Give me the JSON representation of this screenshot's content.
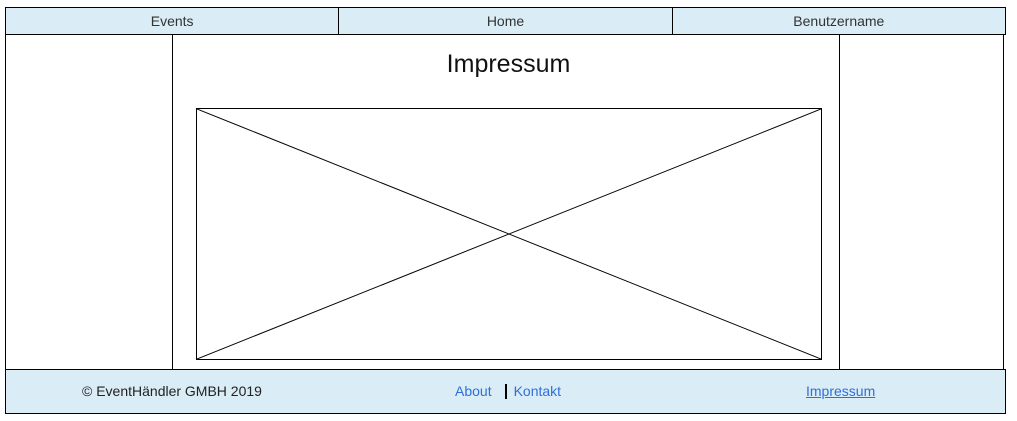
{
  "nav": {
    "items": [
      {
        "label": "Events"
      },
      {
        "label": "Home"
      },
      {
        "label": "Benutzername"
      }
    ]
  },
  "main": {
    "title": "Impressum"
  },
  "footer": {
    "copyright": "© EventHändler GMBH 2019",
    "links": [
      {
        "label": "About"
      },
      {
        "label": "Kontakt"
      }
    ],
    "impressum_label": "Impressum"
  },
  "colors": {
    "bar_background": "#daecf6",
    "link": "#2f6fdb",
    "border": "#000000"
  }
}
